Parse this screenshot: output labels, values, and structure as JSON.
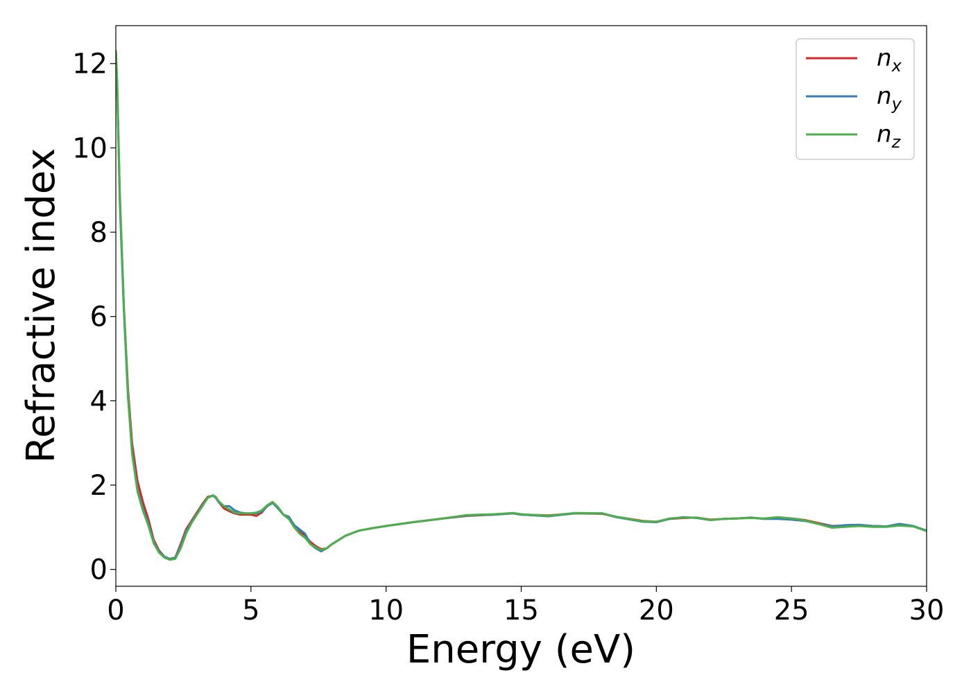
{
  "chart_data": {
    "type": "line",
    "title": "",
    "xlabel": "Energy (eV)",
    "ylabel": "Refractive index",
    "xlim": [
      0,
      30
    ],
    "ylim": [
      -0.4,
      12.9
    ],
    "xticks": [
      0,
      5,
      10,
      15,
      20,
      25,
      30
    ],
    "yticks": [
      0,
      2,
      4,
      6,
      8,
      10,
      12
    ],
    "xtick_labels": [
      "0",
      "5",
      "10",
      "15",
      "20",
      "25",
      "30"
    ],
    "ytick_labels": [
      "0",
      "2",
      "4",
      "6",
      "8",
      "10",
      "12"
    ],
    "grid": false,
    "legend_position": "top-right",
    "series": [
      {
        "name": "n_x",
        "legend_base": "n",
        "legend_sub": "x",
        "color": "#d62728",
        "x": [
          0.0,
          0.05,
          0.15,
          0.3,
          0.45,
          0.6,
          0.8,
          1.0,
          1.2,
          1.4,
          1.6,
          1.8,
          2.0,
          2.2,
          2.4,
          2.6,
          2.8,
          3.0,
          3.2,
          3.4,
          3.6,
          3.7,
          3.8,
          4.0,
          4.2,
          4.4,
          4.6,
          4.8,
          5.0,
          5.2,
          5.4,
          5.6,
          5.8,
          6.0,
          6.2,
          6.4,
          6.6,
          6.8,
          7.0,
          7.2,
          7.4,
          7.6,
          7.8,
          8.0,
          8.5,
          9.0,
          9.5,
          10.0,
          11.0,
          12.0,
          13.0,
          14.0,
          14.7,
          15.0,
          16.0,
          17.0,
          18.0,
          18.5,
          19.5,
          20.0,
          20.5,
          21.0,
          21.5,
          22.0,
          22.5,
          23.0,
          23.5,
          24.0,
          24.5,
          25.0,
          25.5,
          26.0,
          26.5,
          27.0,
          27.5,
          28.0,
          28.5,
          29.0,
          29.5,
          30.0
        ],
        "y": [
          12.3,
          11.5,
          8.8,
          6.2,
          4.3,
          3.0,
          2.1,
          1.6,
          1.2,
          0.7,
          0.45,
          0.3,
          0.25,
          0.28,
          0.6,
          0.95,
          1.15,
          1.35,
          1.55,
          1.72,
          1.75,
          1.7,
          1.6,
          1.45,
          1.38,
          1.33,
          1.3,
          1.3,
          1.3,
          1.27,
          1.35,
          1.5,
          1.58,
          1.45,
          1.3,
          1.2,
          1.05,
          0.9,
          0.8,
          0.65,
          0.55,
          0.48,
          0.5,
          0.6,
          0.8,
          0.92,
          0.98,
          1.03,
          1.12,
          1.2,
          1.27,
          1.3,
          1.33,
          1.3,
          1.28,
          1.33,
          1.32,
          1.25,
          1.15,
          1.13,
          1.2,
          1.22,
          1.23,
          1.18,
          1.2,
          1.21,
          1.23,
          1.2,
          1.22,
          1.21,
          1.17,
          1.1,
          1.03,
          1.04,
          1.05,
          1.03,
          1.02,
          1.06,
          1.03,
          0.92
        ]
      },
      {
        "name": "n_y",
        "legend_base": "n",
        "legend_sub": "y",
        "color": "#377eb8",
        "x": [
          0.0,
          0.05,
          0.15,
          0.3,
          0.45,
          0.6,
          0.8,
          1.0,
          1.2,
          1.4,
          1.6,
          1.8,
          2.0,
          2.2,
          2.4,
          2.6,
          2.8,
          3.0,
          3.2,
          3.4,
          3.6,
          3.7,
          3.8,
          4.0,
          4.2,
          4.4,
          4.6,
          4.8,
          5.0,
          5.2,
          5.4,
          5.6,
          5.8,
          6.0,
          6.2,
          6.4,
          6.6,
          6.8,
          7.0,
          7.2,
          7.4,
          7.6,
          7.8,
          8.0,
          8.5,
          9.0,
          9.5,
          10.0,
          11.0,
          12.0,
          13.0,
          14.0,
          14.7,
          15.0,
          16.0,
          17.0,
          18.0,
          18.5,
          19.5,
          20.0,
          20.5,
          21.0,
          21.5,
          22.0,
          22.5,
          23.0,
          23.5,
          24.0,
          24.5,
          25.0,
          25.5,
          26.0,
          26.5,
          27.0,
          27.5,
          28.0,
          28.5,
          29.0,
          29.5,
          30.0
        ],
        "y": [
          12.3,
          11.5,
          8.7,
          6.1,
          4.1,
          2.8,
          1.9,
          1.45,
          1.1,
          0.65,
          0.42,
          0.3,
          0.25,
          0.27,
          0.55,
          0.9,
          1.12,
          1.32,
          1.52,
          1.7,
          1.75,
          1.7,
          1.6,
          1.5,
          1.5,
          1.4,
          1.35,
          1.33,
          1.33,
          1.33,
          1.37,
          1.5,
          1.58,
          1.45,
          1.3,
          1.25,
          1.05,
          0.95,
          0.85,
          0.6,
          0.5,
          0.43,
          0.5,
          0.6,
          0.8,
          0.92,
          0.98,
          1.03,
          1.12,
          1.2,
          1.28,
          1.3,
          1.33,
          1.3,
          1.26,
          1.33,
          1.33,
          1.24,
          1.13,
          1.12,
          1.2,
          1.24,
          1.22,
          1.17,
          1.2,
          1.21,
          1.23,
          1.2,
          1.2,
          1.18,
          1.15,
          1.08,
          1.02,
          1.05,
          1.06,
          1.03,
          1.02,
          1.08,
          1.03,
          0.92
        ]
      },
      {
        "name": "n_z",
        "legend_base": "n",
        "legend_sub": "z",
        "color": "#4daf4a",
        "x": [
          0.0,
          0.05,
          0.15,
          0.3,
          0.45,
          0.6,
          0.8,
          1.0,
          1.2,
          1.4,
          1.6,
          1.8,
          2.0,
          2.2,
          2.4,
          2.6,
          2.8,
          3.0,
          3.2,
          3.4,
          3.6,
          3.7,
          3.8,
          4.0,
          4.2,
          4.4,
          4.6,
          4.8,
          5.0,
          5.2,
          5.4,
          5.6,
          5.8,
          6.0,
          6.2,
          6.4,
          6.6,
          6.8,
          7.0,
          7.2,
          7.4,
          7.6,
          7.8,
          8.0,
          8.5,
          9.0,
          9.5,
          10.0,
          11.0,
          12.0,
          13.0,
          14.0,
          14.7,
          15.0,
          16.0,
          17.0,
          18.0,
          18.5,
          19.5,
          20.0,
          20.5,
          21.0,
          21.5,
          22.0,
          22.5,
          23.0,
          23.5,
          24.0,
          24.5,
          25.0,
          25.5,
          26.0,
          26.5,
          27.0,
          27.5,
          28.0,
          28.5,
          29.0,
          29.5,
          30.0
        ],
        "y": [
          12.3,
          11.6,
          8.9,
          6.2,
          4.2,
          2.75,
          1.85,
          1.4,
          1.05,
          0.62,
          0.4,
          0.28,
          0.23,
          0.25,
          0.5,
          0.85,
          1.1,
          1.3,
          1.5,
          1.7,
          1.76,
          1.72,
          1.62,
          1.5,
          1.42,
          1.35,
          1.33,
          1.33,
          1.33,
          1.35,
          1.4,
          1.52,
          1.6,
          1.48,
          1.3,
          1.2,
          1.0,
          0.85,
          0.75,
          0.6,
          0.52,
          0.46,
          0.5,
          0.6,
          0.8,
          0.92,
          0.98,
          1.03,
          1.12,
          1.2,
          1.29,
          1.31,
          1.34,
          1.31,
          1.27,
          1.34,
          1.33,
          1.25,
          1.14,
          1.13,
          1.21,
          1.23,
          1.23,
          1.17,
          1.2,
          1.21,
          1.22,
          1.21,
          1.24,
          1.21,
          1.16,
          1.08,
          0.99,
          1.01,
          1.03,
          1.01,
          1.01,
          1.04,
          1.02,
          0.91
        ]
      }
    ]
  }
}
